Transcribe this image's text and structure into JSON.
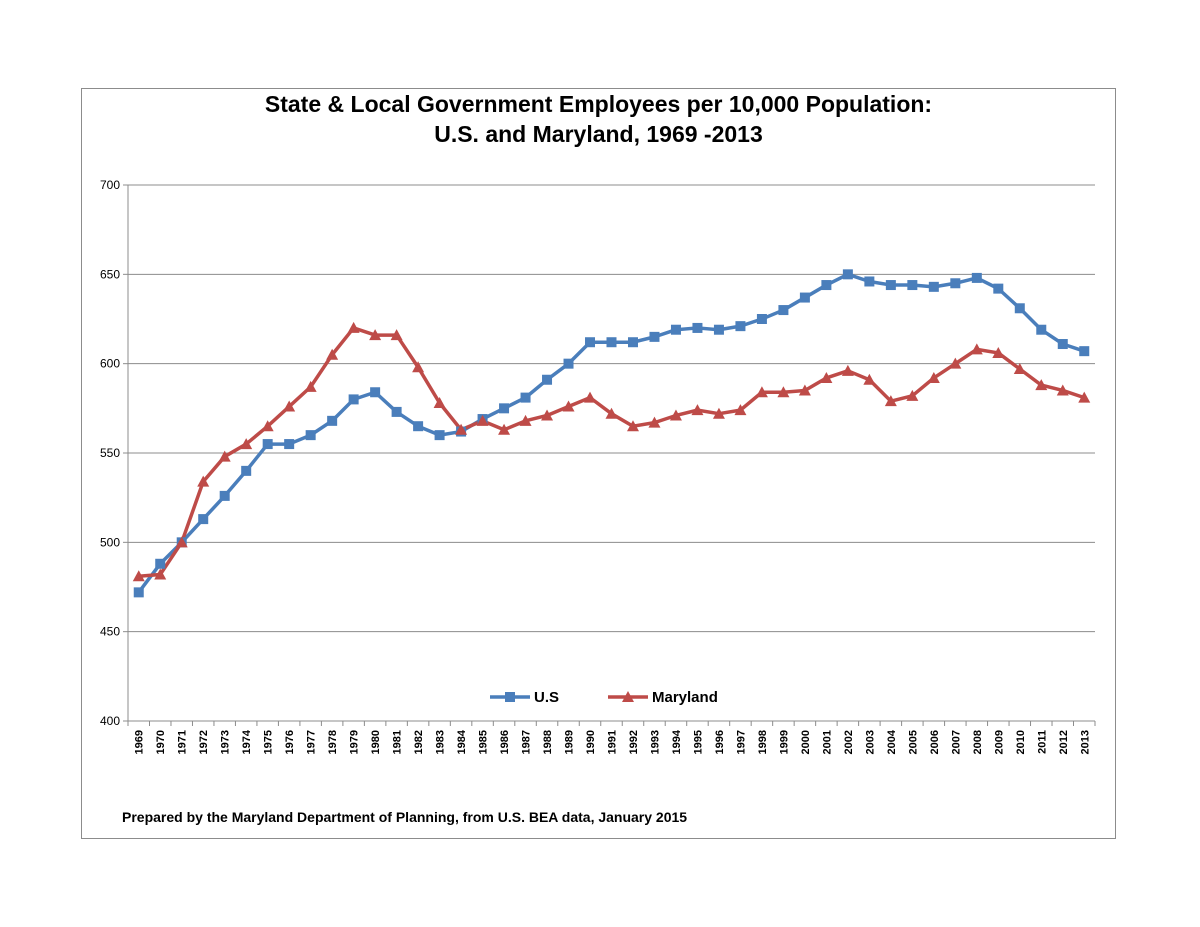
{
  "chart_data": {
    "type": "line",
    "title": "State & Local Government Employees per 10,000 Population:",
    "subtitle": "U.S. and Maryland, 1969 -2013",
    "xlabel": "",
    "ylabel": "",
    "ylim": [
      400,
      700
    ],
    "yticks": [
      "400",
      "450",
      "500",
      "550",
      "600",
      "650",
      "700"
    ],
    "grid": true,
    "legend_position": "bottom-center",
    "categories": [
      "1969",
      "1970",
      "1971",
      "1972",
      "1973",
      "1974",
      "1975",
      "1976",
      "1977",
      "1978",
      "1979",
      "1980",
      "1981",
      "1982",
      "1983",
      "1984",
      "1985",
      "1986",
      "1987",
      "1988",
      "1989",
      "1990",
      "1991",
      "1992",
      "1993",
      "1994",
      "1995",
      "1996",
      "1997",
      "1998",
      "1999",
      "2000",
      "2001",
      "2002",
      "2003",
      "2004",
      "2005",
      "2006",
      "2007",
      "2008",
      "2009",
      "2010",
      "2011",
      "2012",
      "2013"
    ],
    "series": [
      {
        "name": "U.S",
        "color": "#4a7ebb",
        "marker": "square",
        "values": [
          472,
          488,
          500,
          513,
          526,
          540,
          555,
          555,
          560,
          568,
          580,
          584,
          573,
          565,
          560,
          562,
          569,
          575,
          581,
          591,
          600,
          612,
          612,
          612,
          615,
          619,
          620,
          619,
          621,
          625,
          630,
          637,
          644,
          650,
          646,
          644,
          644,
          643,
          645,
          648,
          642,
          631,
          619,
          611,
          607
        ]
      },
      {
        "name": "Maryland",
        "color": "#be4b48",
        "marker": "triangle",
        "values": [
          481,
          482,
          500,
          534,
          548,
          555,
          565,
          576,
          587,
          605,
          620,
          616,
          616,
          598,
          578,
          563,
          568,
          563,
          568,
          571,
          576,
          581,
          572,
          565,
          567,
          571,
          574,
          572,
          574,
          584,
          584,
          585,
          592,
          596,
          591,
          579,
          582,
          592,
          600,
          608,
          606,
          597,
          588,
          585,
          581
        ]
      }
    ]
  },
  "footnote": "Prepared by the Maryland Department of Planning, from U.S. BEA data, January 2015"
}
